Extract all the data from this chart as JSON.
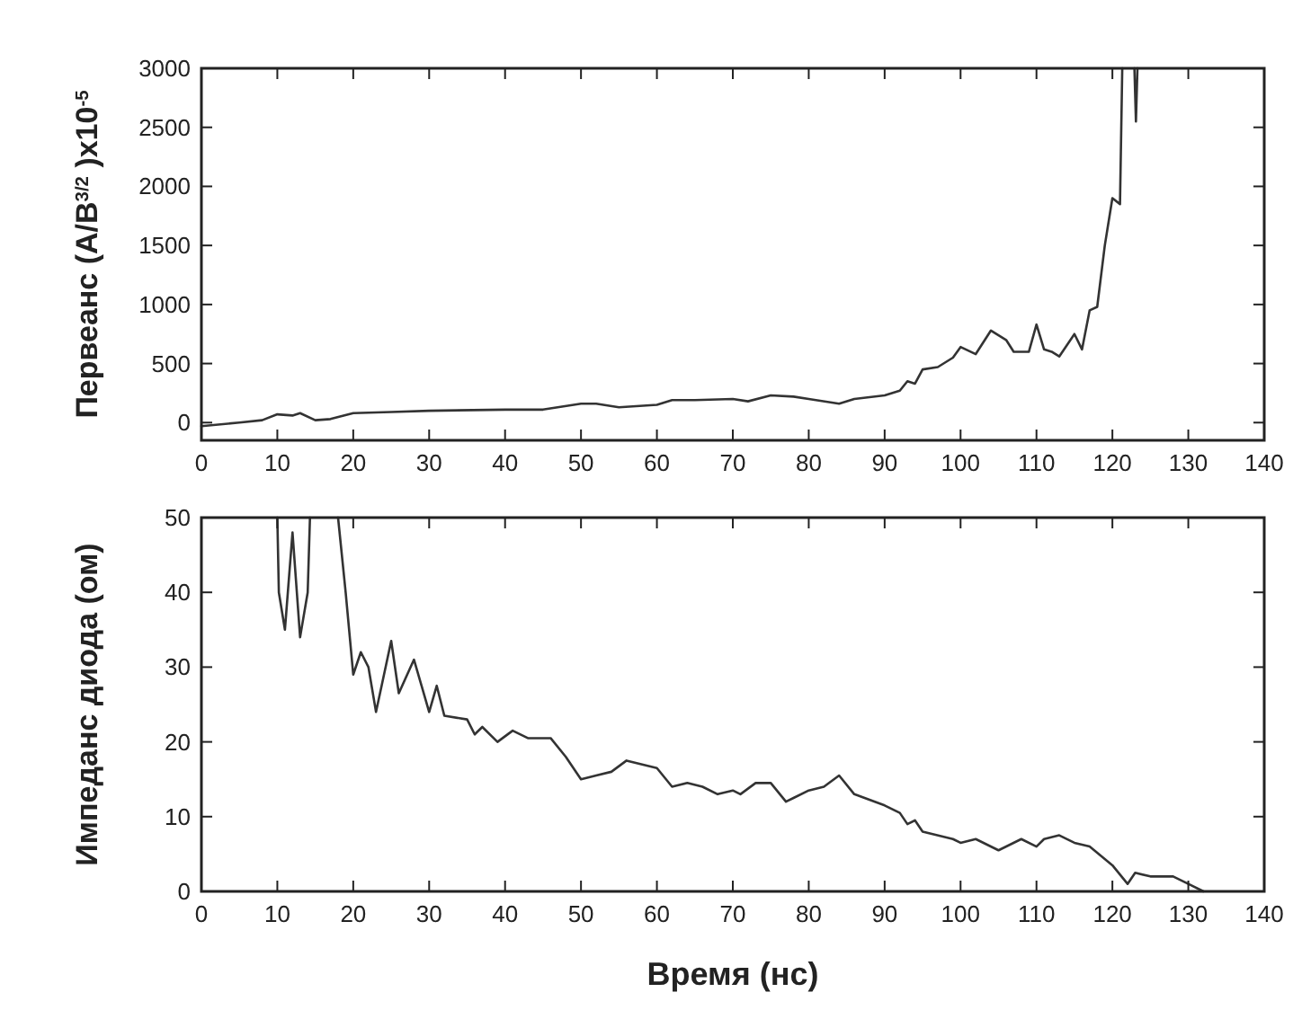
{
  "chart_data": [
    {
      "type": "line",
      "ylabel": "Первеанс (A/B$^{3/2}$ )x10$^{-5}$",
      "xlim": [
        0,
        140
      ],
      "xticks": [
        0,
        10,
        20,
        30,
        40,
        50,
        60,
        70,
        80,
        90,
        100,
        110,
        120,
        130,
        140
      ],
      "ylim": [
        -150,
        3000
      ],
      "yticks": [
        0,
        500,
        1000,
        1500,
        2000,
        2500,
        3000
      ],
      "grid": false,
      "series": [
        {
          "color": "#333333",
          "x": [
            0,
            5,
            8,
            10,
            12,
            13,
            15,
            17,
            20,
            25,
            30,
            40,
            45,
            50,
            52,
            55,
            60,
            62,
            65,
            70,
            72,
            75,
            78,
            80,
            84,
            86,
            90,
            92,
            93,
            94,
            95,
            97,
            99,
            100,
            102,
            104,
            106,
            107,
            109,
            110,
            111,
            112,
            113,
            115,
            116,
            117,
            118,
            119,
            120,
            121,
            121.3,
            122,
            122.9,
            123.1,
            123.3
          ],
          "values": [
            -30,
            0,
            20,
            70,
            60,
            80,
            20,
            30,
            80,
            90,
            100,
            110,
            110,
            160,
            160,
            130,
            150,
            190,
            190,
            200,
            180,
            230,
            220,
            200,
            160,
            200,
            230,
            270,
            350,
            330,
            450,
            470,
            550,
            640,
            580,
            780,
            700,
            600,
            600,
            830,
            620,
            600,
            560,
            750,
            620,
            950,
            980,
            1500,
            1900,
            1850,
            3000,
            null,
            3000,
            2550,
            3000
          ]
        }
      ]
    },
    {
      "type": "line",
      "xlabel": "Время (нс)",
      "ylabel": "Импеданс диода (ом)",
      "xlim": [
        0,
        140
      ],
      "xticks": [
        0,
        10,
        20,
        30,
        40,
        50,
        60,
        70,
        80,
        90,
        100,
        110,
        120,
        130,
        140
      ],
      "ylim": [
        0,
        50
      ],
      "yticks": [
        0,
        10,
        20,
        30,
        40,
        50
      ],
      "grid": false,
      "series": [
        {
          "color": "#333333",
          "x": [
            10,
            10.2,
            11,
            12,
            13,
            14,
            14.3,
            16,
            18,
            19,
            20,
            21,
            22,
            23,
            25,
            26,
            28,
            30,
            31,
            32,
            35,
            36,
            37,
            39,
            41,
            43,
            46,
            48,
            50,
            52,
            54,
            56,
            60,
            62,
            64,
            66,
            68,
            70,
            71,
            73,
            75,
            77,
            78,
            80,
            82,
            84,
            86,
            90,
            92,
            93,
            94,
            95,
            99,
            100,
            102,
            105,
            108,
            110,
            111,
            113,
            115,
            117,
            120,
            122,
            123,
            125,
            128,
            130,
            132
          ],
          "values": [
            50,
            40,
            35,
            48,
            34,
            40,
            50,
            null,
            50,
            40,
            29,
            32,
            30,
            24,
            33.5,
            26.5,
            31,
            24,
            27.5,
            23.5,
            23,
            21,
            22,
            20,
            21.5,
            20.5,
            20.5,
            18,
            15,
            15.5,
            16,
            17.5,
            16.5,
            14,
            14.5,
            14,
            13,
            13.5,
            13,
            14.5,
            14.5,
            12,
            12.5,
            13.5,
            14,
            15.5,
            13,
            11.5,
            10.5,
            9,
            9.5,
            8,
            7,
            6.5,
            7,
            5.5,
            7,
            6,
            7,
            7.5,
            6.5,
            6,
            3.5,
            1,
            2.5,
            2,
            2,
            1,
            0
          ]
        }
      ]
    }
  ]
}
